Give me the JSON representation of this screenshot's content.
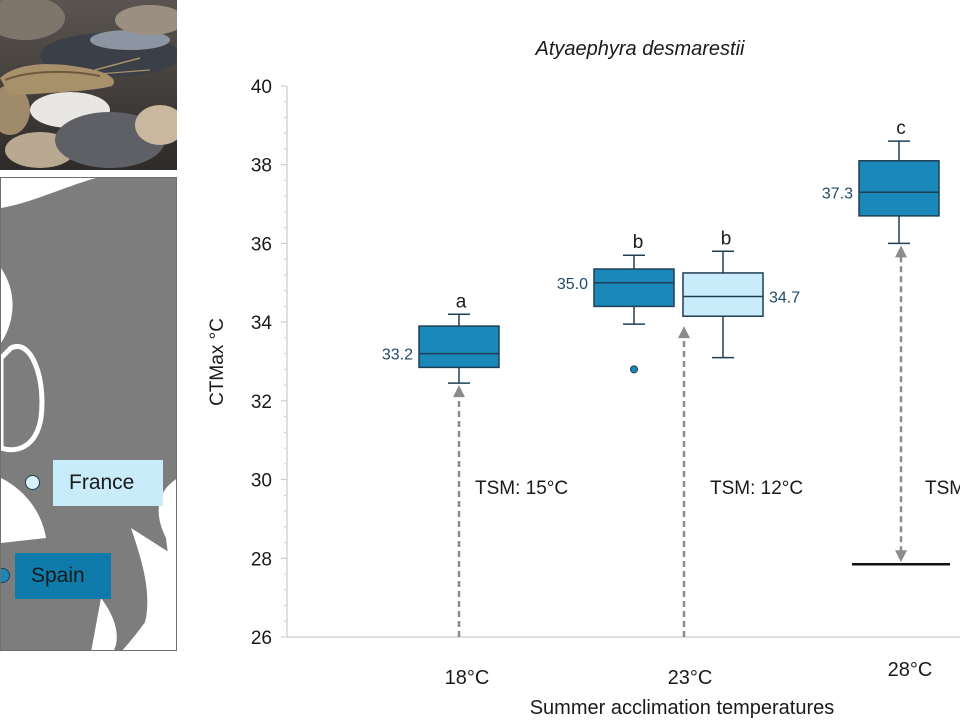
{
  "photo": {
    "subject": "shrimp-photo"
  },
  "map": {
    "locations": [
      {
        "name": "France",
        "color": "#c9ecfb",
        "dot_color": "#d9f1fb"
      },
      {
        "name": "Spain",
        "color": "#0f7bab",
        "dot_color": "#1a88b8"
      }
    ],
    "land_color": "#7d7d7d"
  },
  "chart_data": {
    "type": "box",
    "title": "Atyaephyra desmarestii",
    "xlabel": "Summer acclimation temperatures",
    "ylabel": "CTMax °C",
    "ylim": [
      26,
      40
    ],
    "yticks": [
      26,
      28,
      30,
      32,
      34,
      36,
      38,
      40
    ],
    "categories": [
      "18°C",
      "23°C",
      "28°C"
    ],
    "colors": {
      "Spain": "#1a88b8",
      "France": "#c9ecfb",
      "outline": "#1f3f55"
    },
    "boxes": [
      {
        "category": "18°C",
        "group": "Spain",
        "min": 32.45,
        "q1": 32.85,
        "median": 33.2,
        "q3": 33.9,
        "max": 34.2,
        "median_label": "33.2",
        "label_side": "left",
        "letter": "a",
        "outliers": []
      },
      {
        "category": "23°C",
        "group": "Spain",
        "min": 33.95,
        "q1": 34.4,
        "median": 35.0,
        "q3": 35.35,
        "max": 35.7,
        "median_label": "35.0",
        "label_side": "left",
        "letter": "b",
        "outliers": [
          32.8
        ]
      },
      {
        "category": "23°C",
        "group": "France",
        "min": 33.1,
        "q1": 34.15,
        "median": 34.65,
        "q3": 35.25,
        "max": 35.8,
        "median_label": "34.7",
        "label_side": "right",
        "letter": "b",
        "outliers": []
      },
      {
        "category": "28°C",
        "group": "Spain",
        "min": 36.0,
        "q1": 36.7,
        "median": 37.3,
        "q3": 38.1,
        "max": 38.6,
        "median_label": "37.3",
        "label_side": "left",
        "letter": "c",
        "outliers": []
      }
    ],
    "tsm_arrows": [
      {
        "label": "TSM: 15°C",
        "from": 26,
        "to": 32.45
      },
      {
        "label": "TSM: 12°C",
        "from": 26,
        "to": 33.95
      },
      {
        "label": "TSM",
        "from": 27.85,
        "to": 36.0
      }
    ],
    "reference_line": {
      "value": 27.85
    }
  }
}
